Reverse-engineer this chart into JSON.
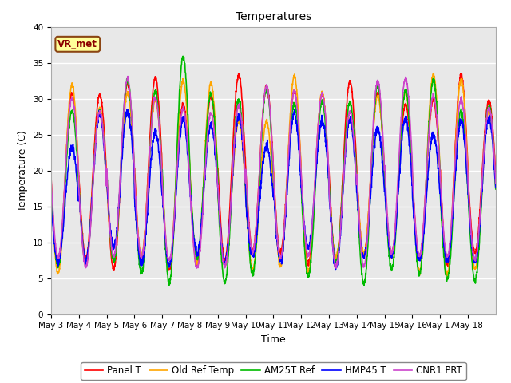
{
  "title": "Temperatures",
  "xlabel": "Time",
  "ylabel": "Temperature (C)",
  "ylim": [
    0,
    40
  ],
  "plot_bg_color": "#e8e8e8",
  "fig_bg_color": "#ffffff",
  "annotation_text": "VR_met",
  "annotation_color": "#8b0000",
  "annotation_bg": "#ffff99",
  "annotation_border": "#8b4513",
  "series_colors": [
    "#ff0000",
    "#ffa500",
    "#00bb00",
    "#0000ff",
    "#cc44cc"
  ],
  "series_labels": [
    "Panel T",
    "Old Ref Temp",
    "AM25T Ref",
    "HMP45 T",
    "CNR1 PRT"
  ],
  "series_linewidths": [
    1.2,
    1.2,
    1.2,
    1.2,
    1.2
  ],
  "n_days": 16,
  "tick_dates": [
    "May 3",
    "May 4",
    "May 5",
    "May 6",
    "May 7",
    "May 8",
    "May 9",
    "May 10",
    "May 11",
    "May 12",
    "May 13",
    "May 14",
    "May 15",
    "May 16",
    "May 17",
    "May 18"
  ],
  "grid_color": "#ffffff",
  "tick_fontsize": 7.5,
  "title_fontsize": 10,
  "label_fontsize": 9
}
